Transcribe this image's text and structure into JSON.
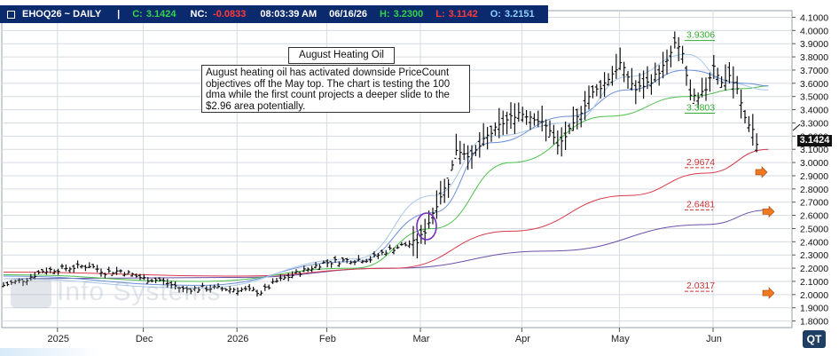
{
  "header": {
    "symbol": "EHOQ26 ~ DAILY",
    "sep": "|",
    "close_label": "C:",
    "close_value": "3.1424",
    "nc_label": "NC:",
    "nc_value": "-0.0833",
    "time": "08:03:39 AM",
    "date": "06/16/26",
    "high_label": "H:",
    "high_value": "3.2300",
    "low_label": "L:",
    "low_value": "3.1142",
    "open_label": "O:",
    "open_value": "3.2151"
  },
  "annotation": {
    "title": "August Heating Oil",
    "body": "August heating oil has activated downside PriceCount objectives off the May top.  The chart is testing the 100 dma while the first count projects a deeper slide to the $2.96 area potentially."
  },
  "last_price_tag": "3.1424",
  "watermark": "Info Systems",
  "logo": "QT",
  "colors": {
    "header_bg": "#0b2a6e",
    "header_text": "#ffffff",
    "close_green": "#33d24a",
    "negative_red": "#ff3b3b",
    "open_blue": "#8fd0ff",
    "ma_10": "#a8c8e8",
    "ma_20": "#6b8fd6",
    "ma_40": "#4cc04c",
    "ma_100": "#d63a4a",
    "ma_200": "#6a4fa8",
    "count_green": "#33aa33",
    "count_red": "#cc3333",
    "arrow_orange": "#f07820"
  },
  "chart_data": {
    "type": "bar",
    "subtype": "ohlc-daily",
    "title": "EHOQ26 ~ DAILY",
    "y_range": [
      1.75,
      4.15
    ],
    "y_ticks": [
      "4.1000",
      "4.0000",
      "3.9000",
      "3.8000",
      "3.7000",
      "3.6000",
      "3.5000",
      "3.4000",
      "3.3000",
      "3.2000",
      "3.1000",
      "3.0000",
      "2.9000",
      "2.8000",
      "2.7000",
      "2.6000",
      "2.5000",
      "2.4000",
      "2.3000",
      "2.2000",
      "2.1000",
      "2.0000",
      "1.9000",
      "1.8000"
    ],
    "x_labels": [
      {
        "label": "2025",
        "color": "#d04020"
      },
      {
        "label": "Dec",
        "color": "#222222"
      },
      {
        "label": "2026",
        "color": "#d04020"
      },
      {
        "label": "Feb",
        "color": "#222222"
      },
      {
        "label": "Mar",
        "color": "#222222"
      },
      {
        "label": "Apr",
        "color": "#222222"
      },
      {
        "label": "May",
        "color": "#222222"
      },
      {
        "label": "Jun",
        "color": "#222222"
      }
    ],
    "price_path": [
      {
        "i": 0,
        "c": 2.07
      },
      {
        "i": 6,
        "c": 2.12
      },
      {
        "i": 10,
        "c": 2.18
      },
      {
        "i": 16,
        "c": 2.2
      },
      {
        "i": 22,
        "c": 2.22
      },
      {
        "i": 26,
        "c": 2.17
      },
      {
        "i": 30,
        "c": 2.18
      },
      {
        "i": 36,
        "c": 2.12
      },
      {
        "i": 40,
        "c": 2.11
      },
      {
        "i": 46,
        "c": 2.04
      },
      {
        "i": 52,
        "c": 2.05
      },
      {
        "i": 60,
        "c": 2.04
      },
      {
        "i": 66,
        "c": 2.02
      },
      {
        "i": 70,
        "c": 2.1
      },
      {
        "i": 76,
        "c": 2.17
      },
      {
        "i": 82,
        "c": 2.24
      },
      {
        "i": 88,
        "c": 2.26
      },
      {
        "i": 94,
        "c": 2.27
      },
      {
        "i": 98,
        "c": 2.33
      },
      {
        "i": 102,
        "c": 2.37
      },
      {
        "i": 106,
        "c": 2.4
      },
      {
        "i": 108,
        "c": 2.48
      },
      {
        "i": 110,
        "c": 2.62
      },
      {
        "i": 112,
        "c": 2.75
      },
      {
        "i": 114,
        "c": 2.85
      },
      {
        "i": 116,
        "c": 3.1
      },
      {
        "i": 120,
        "c": 3.05
      },
      {
        "i": 124,
        "c": 3.2
      },
      {
        "i": 128,
        "c": 3.3
      },
      {
        "i": 132,
        "c": 3.38
      },
      {
        "i": 136,
        "c": 3.34
      },
      {
        "i": 140,
        "c": 3.25
      },
      {
        "i": 142,
        "c": 3.12
      },
      {
        "i": 146,
        "c": 3.28
      },
      {
        "i": 150,
        "c": 3.5
      },
      {
        "i": 154,
        "c": 3.6
      },
      {
        "i": 158,
        "c": 3.75
      },
      {
        "i": 162,
        "c": 3.55
      },
      {
        "i": 166,
        "c": 3.62
      },
      {
        "i": 170,
        "c": 3.76
      },
      {
        "i": 172,
        "c": 3.9
      },
      {
        "i": 174,
        "c": 3.82
      },
      {
        "i": 176,
        "c": 3.5
      },
      {
        "i": 178,
        "c": 3.48
      },
      {
        "i": 180,
        "c": 3.56
      },
      {
        "i": 182,
        "c": 3.74
      },
      {
        "i": 184,
        "c": 3.6
      },
      {
        "i": 186,
        "c": 3.66
      },
      {
        "i": 188,
        "c": 3.55
      },
      {
        "i": 190,
        "c": 3.34
      },
      {
        "i": 192,
        "c": 3.25
      },
      {
        "i": 193,
        "c": 3.14
      }
    ],
    "moving_averages": [
      {
        "key": "ma_200",
        "points": [
          [
            0,
            2.12
          ],
          [
            60,
            2.13
          ],
          [
            100,
            2.2
          ],
          [
            140,
            2.33
          ],
          [
            180,
            2.53
          ],
          [
            196,
            2.64
          ]
        ]
      },
      {
        "key": "ma_100",
        "points": [
          [
            0,
            2.17
          ],
          [
            60,
            2.14
          ],
          [
            100,
            2.2
          ],
          [
            130,
            2.48
          ],
          [
            160,
            2.75
          ],
          [
            180,
            2.92
          ],
          [
            196,
            3.1
          ]
        ]
      },
      {
        "key": "ma_40",
        "points": [
          [
            0,
            2.15
          ],
          [
            50,
            2.1
          ],
          [
            90,
            2.2
          ],
          [
            110,
            2.5
          ],
          [
            130,
            3.0
          ],
          [
            155,
            3.35
          ],
          [
            175,
            3.5
          ],
          [
            190,
            3.56
          ],
          [
            196,
            3.58
          ]
        ]
      },
      {
        "key": "ma_20",
        "points": [
          [
            0,
            2.14
          ],
          [
            50,
            2.07
          ],
          [
            90,
            2.25
          ],
          [
            110,
            2.62
          ],
          [
            125,
            3.15
          ],
          [
            145,
            3.35
          ],
          [
            160,
            3.55
          ],
          [
            175,
            3.7
          ],
          [
            190,
            3.6
          ],
          [
            196,
            3.58
          ]
        ]
      },
      {
        "key": "ma_10",
        "points": [
          [
            0,
            2.12
          ],
          [
            50,
            2.05
          ],
          [
            90,
            2.27
          ],
          [
            110,
            2.75
          ],
          [
            125,
            3.2
          ],
          [
            145,
            3.3
          ],
          [
            160,
            3.65
          ],
          [
            175,
            3.82
          ],
          [
            186,
            3.6
          ],
          [
            196,
            3.55
          ]
        ]
      }
    ],
    "price_count_levels": [
      {
        "label": "3.9306",
        "value": 3.9306,
        "color": "#33aa33"
      },
      {
        "label": "3.3803",
        "value": 3.3803,
        "color": "#33aa33"
      },
      {
        "label": "2.9674",
        "value": 2.9674,
        "color": "#cc3333"
      },
      {
        "label": "2.6481",
        "value": 2.6481,
        "color": "#cc3333"
      },
      {
        "label": "2.0317",
        "value": 2.0317,
        "color": "#cc3333"
      }
    ],
    "grid": true
  }
}
